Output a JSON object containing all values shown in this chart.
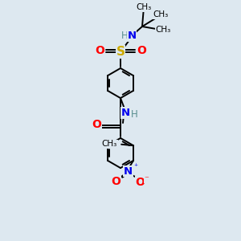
{
  "bg_color": "#dde8f0",
  "black": "#000000",
  "blue": "#0000ee",
  "red": "#ff0000",
  "yellow": "#ccaa00",
  "teal": "#5a9090",
  "bond_lw": 1.4,
  "fig_size": [
    3.0,
    3.0
  ],
  "dpi": 100,
  "xlim": [
    0,
    10
  ],
  "ylim": [
    0,
    10
  ]
}
